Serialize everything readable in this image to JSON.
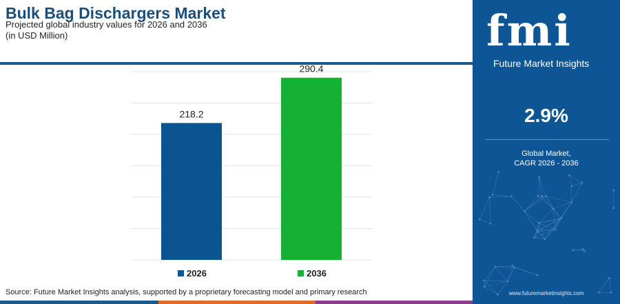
{
  "header": {
    "title": "Bulk Bag Dischargers Market",
    "subtitle_line1": "Projected global industry values for 2026 and 2036",
    "subtitle_line2": "(in USD Million)"
  },
  "chart_data": {
    "type": "bar",
    "categories": [
      "2026",
      "2036"
    ],
    "values": [
      218.2,
      290.4
    ],
    "value_labels": [
      "218.2",
      "290.4"
    ],
    "bar_colors": [
      "#0c5391",
      "#15b034"
    ],
    "ylim": [
      0,
      300
    ],
    "grid": true,
    "legend": {
      "placement": "bottom",
      "entries": [
        "2026",
        "2036"
      ]
    }
  },
  "source": "Source: Future Market Insights analysis, supported by a proprietary forecasting model and primary research",
  "sidebar": {
    "logo_text": "fmi",
    "logo_subtitle": "Future Market Insights",
    "cagr_value": "2.9%",
    "cagr_label_line1": "Global Market,",
    "cagr_label_line2": "CAGR 2026 - 2036",
    "website": "www.futuremarketinsights.com"
  },
  "colors": {
    "brand_blue": "#0e5596",
    "title_blue": "#1b4f7a",
    "strip": [
      "#1b5a8a",
      "#e46a2a",
      "#8a3c8e",
      "#1b5a8a"
    ]
  }
}
